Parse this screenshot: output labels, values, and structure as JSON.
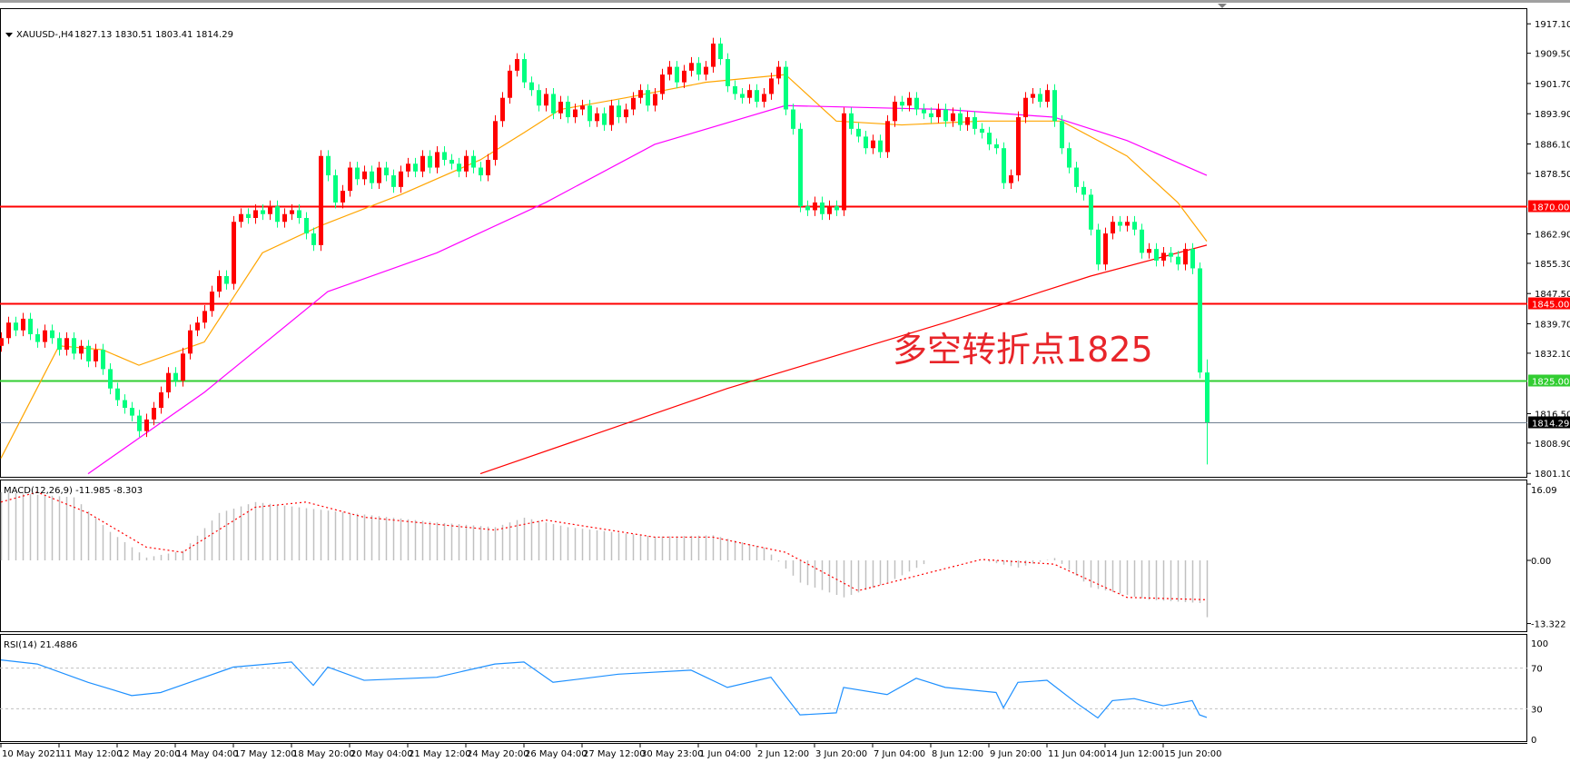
{
  "header": {
    "symbol": "XAUUSD-,H4",
    "ohlc": "1827.13 1830.51 1803.41 1814.29",
    "menu_icon": "triangle-down-icon"
  },
  "annotation": "多空转折点1825",
  "colors": {
    "bull": "#ff0000",
    "bear": "#00ff7f",
    "ma_fast": "#ffa500",
    "ma_mid": "#ff00ff",
    "ma_slow": "#ff0000",
    "level_red": "#ff0000",
    "level_green": "#32cd32",
    "current_price": "#708090",
    "macd_hist": "#c0c0c0",
    "macd_signal": "#ff0000",
    "rsi": "#1e90ff"
  },
  "chart_data": [
    {
      "type": "candlestick",
      "title": "XAUUSD-,H4",
      "ylim": [
        1800.2,
        1920.9
      ],
      "y_ticks": [
        "1917.10",
        "1909.50",
        "1901.70",
        "1893.90",
        "1886.10",
        "1878.50",
        "1862.90",
        "1855.30",
        "1847.50",
        "1839.70",
        "1832.10",
        "1816.50",
        "1808.90",
        "1801.10"
      ],
      "x_ticks": [
        "10 May 2021",
        "11 May 12:00",
        "12 May 20:00",
        "14 May 04:00",
        "17 May 12:00",
        "18 May 20:00",
        "20 May 04:00",
        "21 May 12:00",
        "24 May 20:00",
        "26 May 04:00",
        "27 May 12:00",
        "30 May 23:00",
        "1 Jun 04:00",
        "2 Jun 12:00",
        "3 Jun 20:00",
        "7 Jun 04:00",
        "8 Jun 12:00",
        "9 Jun 20:00",
        "11 Jun 04:00",
        "14 Jun 12:00",
        "15 Jun 20:00"
      ],
      "x_tick_every_bars": 8,
      "first_open": 1834,
      "closes": [
        1836,
        1840,
        1838,
        1841,
        1837,
        1835,
        1838,
        1836,
        1833,
        1836,
        1832,
        1834,
        1830,
        1833,
        1828,
        1823,
        1820,
        1818,
        1816,
        1812,
        1815,
        1818,
        1822,
        1827,
        1825,
        1832,
        1838,
        1840,
        1843,
        1848,
        1852,
        1850,
        1866,
        1868,
        1867,
        1869,
        1868,
        1870,
        1866,
        1868,
        1869,
        1867,
        1863,
        1860,
        1883,
        1878,
        1871,
        1874,
        1880,
        1877,
        1879,
        1876,
        1880,
        1878,
        1875,
        1879,
        1881,
        1879,
        1883,
        1880,
        1884,
        1882,
        1881,
        1879,
        1883,
        1880,
        1878,
        1882,
        1892,
        1898,
        1905,
        1908,
        1902,
        1900,
        1896,
        1899,
        1894,
        1897,
        1893,
        1895,
        1896,
        1892,
        1894,
        1891,
        1896,
        1893,
        1895,
        1898,
        1900,
        1896,
        1899,
        1904,
        1906,
        1902,
        1905,
        1907,
        1904,
        1906,
        1912,
        1908,
        1901,
        1899,
        1898,
        1900,
        1897,
        1899,
        1903,
        1906,
        1895,
        1890,
        1870,
        1869,
        1871,
        1868,
        1870,
        1869,
        1894,
        1890,
        1888,
        1885,
        1887,
        1884,
        1892,
        1897,
        1896,
        1898,
        1895,
        1894,
        1893,
        1895,
        1892,
        1894,
        1891,
        1893,
        1890,
        1889,
        1886,
        1885,
        1876,
        1878,
        1893,
        1898,
        1899,
        1897,
        1900,
        1892,
        1885,
        1880,
        1875,
        1873,
        1864,
        1855,
        1863,
        1866,
        1865,
        1866,
        1864,
        1858,
        1859,
        1856,
        1858,
        1857,
        1855,
        1859,
        1854,
        1827.13,
        1814.29
      ],
      "last_bar": {
        "open": 1827.13,
        "high": 1830.51,
        "low": 1803.41,
        "close": 1814.29
      },
      "moving_averages": [
        {
          "color_key": "ma_fast",
          "points": [
            [
              0,
              1805
            ],
            [
              8,
              1834
            ],
            [
              14,
              1833
            ],
            [
              19,
              1829
            ],
            [
              28,
              1835
            ],
            [
              36,
              1858
            ],
            [
              44,
              1865
            ],
            [
              55,
              1873
            ],
            [
              66,
              1882
            ],
            [
              72,
              1889
            ],
            [
              77,
              1895
            ],
            [
              86,
              1898
            ],
            [
              97,
              1902
            ],
            [
              108,
              1904
            ],
            [
              115,
              1892
            ],
            [
              124,
              1891
            ],
            [
              135,
              1892
            ],
            [
              146,
              1892
            ],
            [
              155,
              1883
            ],
            [
              162,
              1871
            ],
            [
              166,
              1861
            ]
          ]
        },
        {
          "color_key": "ma_mid",
          "points": [
            [
              12,
              1801
            ],
            [
              28,
              1822
            ],
            [
              45,
              1848
            ],
            [
              60,
              1858
            ],
            [
              75,
              1871
            ],
            [
              90,
              1886
            ],
            [
              108,
              1896
            ],
            [
              130,
              1895
            ],
            [
              145,
              1893
            ],
            [
              155,
              1887
            ],
            [
              166,
              1878
            ]
          ]
        },
        {
          "color_key": "ma_slow",
          "points": [
            [
              66,
              1801
            ],
            [
              100,
              1823
            ],
            [
              130,
              1840
            ],
            [
              150,
              1852
            ],
            [
              166,
              1860
            ]
          ]
        }
      ],
      "levels": [
        {
          "price": 1870.0,
          "label": "1870.00",
          "color_key": "level_red"
        },
        {
          "price": 1845.0,
          "label": "1845.00",
          "color_key": "level_red"
        },
        {
          "price": 1825.0,
          "label": "1825.00",
          "color_key": "level_green"
        },
        {
          "price": 1814.29,
          "label": "1814.29",
          "color_key": "current_price"
        }
      ]
    },
    {
      "type": "bar",
      "title": "MACD(12,26,9) -11.985 -8.303",
      "ylim": [
        -13.322,
        16.09
      ],
      "y_ticks": [
        "16.09",
        "0.00",
        "-13.322"
      ],
      "histogram_points": [
        [
          0,
          14.4
        ],
        [
          10,
          13.3
        ],
        [
          15,
          6
        ],
        [
          20,
          0.6
        ],
        [
          25,
          2
        ],
        [
          30,
          10
        ],
        [
          35,
          12.3
        ],
        [
          42,
          11
        ],
        [
          48,
          10
        ],
        [
          60,
          8
        ],
        [
          68,
          7
        ],
        [
          72,
          9
        ],
        [
          78,
          7
        ],
        [
          90,
          5
        ],
        [
          98,
          5.3
        ],
        [
          105,
          2.7
        ],
        [
          110,
          -4.7
        ],
        [
          116,
          -7.8
        ],
        [
          122,
          -4.7
        ],
        [
          128,
          0
        ],
        [
          135,
          0
        ],
        [
          140,
          -1.5
        ],
        [
          145,
          0.5
        ],
        [
          150,
          -5.7
        ],
        [
          158,
          -8.3
        ],
        [
          165,
          -9
        ],
        [
          166,
          -11.985
        ]
      ],
      "signal_points": [
        [
          0,
          12.3
        ],
        [
          5,
          14.4
        ],
        [
          12,
          10
        ],
        [
          20,
          2.8
        ],
        [
          25,
          1.7
        ],
        [
          35,
          11.2
        ],
        [
          42,
          12.3
        ],
        [
          50,
          9.1
        ],
        [
          68,
          6.4
        ],
        [
          75,
          8.5
        ],
        [
          90,
          4.9
        ],
        [
          98,
          4.9
        ],
        [
          108,
          1.7
        ],
        [
          118,
          -6.4
        ],
        [
          128,
          -2.5
        ],
        [
          135,
          0.2
        ],
        [
          145,
          -0.8
        ],
        [
          155,
          -7.8
        ],
        [
          166,
          -8.303
        ]
      ]
    },
    {
      "type": "line",
      "title": "RSI(14) 21.4886",
      "ylim": [
        0,
        100
      ],
      "y_ticks": [
        "100",
        "70",
        "30",
        "0"
      ],
      "levels": [
        70,
        30
      ],
      "points": [
        [
          0,
          78
        ],
        [
          5,
          74
        ],
        [
          12,
          56
        ],
        [
          18,
          43
        ],
        [
          22,
          46
        ],
        [
          26,
          56
        ],
        [
          32,
          71
        ],
        [
          40,
          76
        ],
        [
          43,
          53
        ],
        [
          45,
          71
        ],
        [
          50,
          58
        ],
        [
          60,
          61
        ],
        [
          68,
          74
        ],
        [
          72,
          76
        ],
        [
          76,
          56
        ],
        [
          85,
          64
        ],
        [
          95,
          68
        ],
        [
          100,
          51
        ],
        [
          106,
          61
        ],
        [
          110,
          24
        ],
        [
          115,
          26
        ],
        [
          116,
          51
        ],
        [
          122,
          44
        ],
        [
          126,
          60
        ],
        [
          130,
          51
        ],
        [
          137,
          46
        ],
        [
          138,
          31
        ],
        [
          140,
          56
        ],
        [
          144,
          58
        ],
        [
          148,
          36
        ],
        [
          151,
          21
        ],
        [
          153,
          38
        ],
        [
          156,
          40
        ],
        [
          160,
          33
        ],
        [
          164,
          38
        ],
        [
          165,
          24
        ],
        [
          166,
          21.4886
        ]
      ]
    }
  ]
}
